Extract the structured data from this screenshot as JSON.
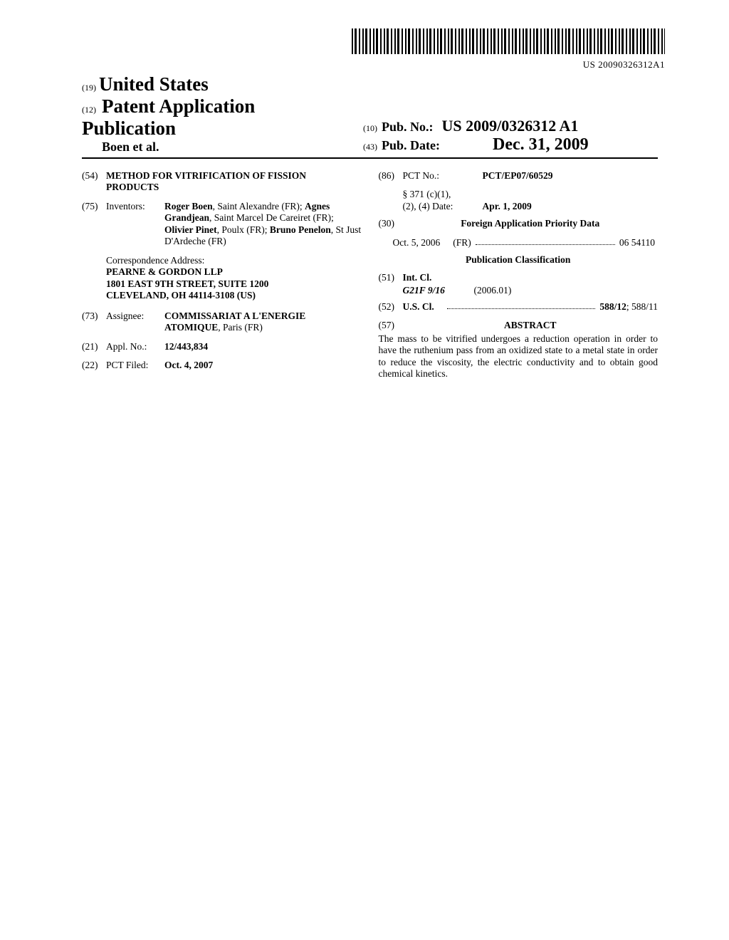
{
  "barcode_text": "US 20090326312A1",
  "header": {
    "code19": "(19)",
    "country": "United States",
    "code12": "(12)",
    "pub_type": "Patent Application Publication",
    "authors": "Boen et al.",
    "code10": "(10)",
    "pubno_label": "Pub. No.:",
    "pubno_value": "US 2009/0326312 A1",
    "code43": "(43)",
    "pubdate_label": "Pub. Date:",
    "pubdate_value": "Dec. 31, 2009"
  },
  "left": {
    "c54": "(54)",
    "title": "METHOD FOR VITRIFICATION OF FISSION PRODUCTS",
    "c75": "(75)",
    "inventors_label": "Inventors:",
    "inventors_html": "Roger Boen|, Saint Alexandre (FR); |Agnes Grandjean|, Saint Marcel De Careiret (FR); |Olivier Pinet|, Poulx (FR); |Bruno Penelon|, St Just D'Ardeche (FR)",
    "corr_label": "Correspondence Address:",
    "corr1": "PEARNE & GORDON LLP",
    "corr2": "1801 EAST 9TH STREET, SUITE 1200",
    "corr3": "CLEVELAND, OH 44114-3108 (US)",
    "c73": "(73)",
    "assignee_label": "Assignee:",
    "assignee_html": "COMMISSARIAT A L'ENERGIE ATOMIQUE|, Paris (FR)",
    "c21": "(21)",
    "applno_label": "Appl. No.:",
    "applno_value": "12/443,834",
    "c22": "(22)",
    "pctfiled_label": "PCT Filed:",
    "pctfiled_value": "Oct. 4, 2007"
  },
  "right": {
    "c86": "(86)",
    "pctno_label": "PCT No.:",
    "pctno_value": "PCT/EP07/60529",
    "s371a": "§ 371 (c)(1),",
    "s371b": "(2), (4) Date:",
    "s371_date": "Apr. 1, 2009",
    "c30": "(30)",
    "foreign_head": "Foreign Application Priority Data",
    "prio_date": "Oct. 5, 2006",
    "prio_cc": "(FR)",
    "prio_num": "06 54110",
    "pubclass_head": "Publication Classification",
    "c51": "(51)",
    "intcl_label": "Int. Cl.",
    "intcl_sym": "G21F 9/16",
    "intcl_ver": "(2006.01)",
    "c52": "(52)",
    "uscl_label": "U.S. Cl.",
    "uscl_bold": "588/12",
    "uscl_rest": "; 588/11",
    "c57": "(57)",
    "abstract_head": "ABSTRACT",
    "abstract_text": "The mass to be vitrified undergoes a reduction operation in order to have the ruthenium pass from an oxidized state to a metal state in order to reduce the viscosity, the electric conductivity and to obtain good chemical kinetics."
  }
}
